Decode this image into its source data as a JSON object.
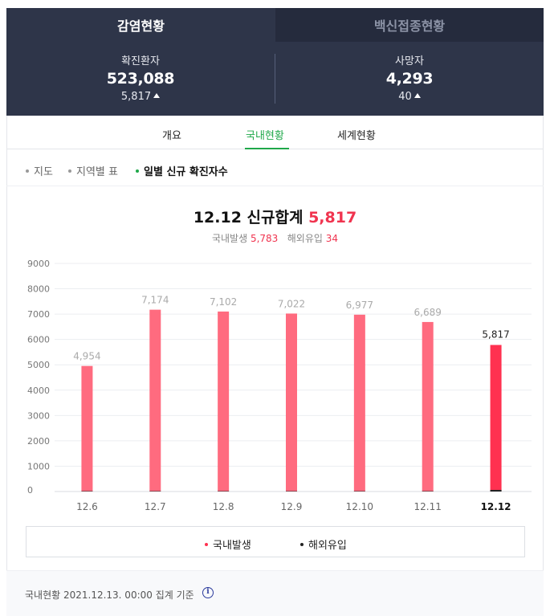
{
  "tabs": {
    "active": "감염현황",
    "inactive": "백신접종현황"
  },
  "stats": [
    {
      "label": "확진환자",
      "value": "523,088",
      "delta": "5,817"
    },
    {
      "label": "사망자",
      "value": "4,293",
      "delta": "40"
    }
  ],
  "subtabs": [
    "개요",
    "국내현황",
    "세계현황"
  ],
  "views": [
    "지도",
    "지역별 표",
    "일별 신규 확진자수"
  ],
  "summary": {
    "title_prefix": "12.12 신규합계",
    "total": "5,817",
    "domestic_label": "국내발생",
    "domestic_value": "5,783",
    "overseas_label": "해외유입",
    "overseas_value": "34"
  },
  "chart_data": {
    "type": "bar",
    "categories": [
      "12.6",
      "12.7",
      "12.8",
      "12.9",
      "12.10",
      "12.11",
      "12.12"
    ],
    "series": [
      {
        "name": "국내발생",
        "values": [
          4954,
          7174,
          7102,
          7022,
          6977,
          6689,
          5783
        ]
      },
      {
        "name": "해외유입",
        "values": [
          0,
          0,
          0,
          0,
          0,
          0,
          34
        ]
      }
    ],
    "totals_labels": [
      "4,954",
      "7,174",
      "7,102",
      "7,022",
      "6,977",
      "6,689",
      "5,817"
    ],
    "yticks": [
      0,
      1000,
      2000,
      3000,
      4000,
      5000,
      6000,
      7000,
      8000,
      9000
    ],
    "ylim": [
      0,
      9000
    ],
    "highlight_index": 6,
    "colors": {
      "bar": "#ff6b7f",
      "bar_highlight": "#ff3150",
      "overseas": "#222222"
    }
  },
  "legend": [
    {
      "label": "국내발생",
      "color": "#ff3150"
    },
    {
      "label": "해외유입",
      "color": "#222222"
    }
  ],
  "footer": {
    "text": "국내현황 2021.12.13. 00:00 집계 기준"
  }
}
